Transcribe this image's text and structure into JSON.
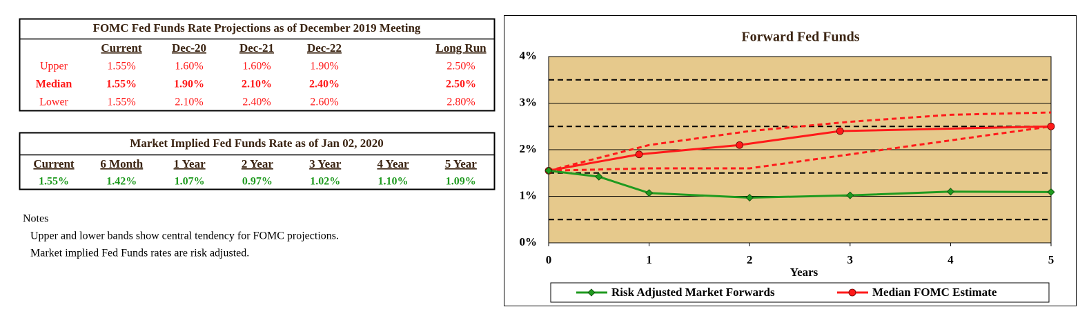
{
  "fomc_table": {
    "title": "FOMC Fed Funds Rate Projections as of December 2019 Meeting",
    "columns": [
      "Current",
      "Dec-20",
      "Dec-21",
      "Dec-22",
      "Long Run"
    ],
    "rows": [
      {
        "label": "Upper",
        "values": [
          "1.55%",
          "1.60%",
          "1.60%",
          "1.90%",
          "2.50%"
        ]
      },
      {
        "label": "Median",
        "values": [
          "1.55%",
          "1.90%",
          "2.10%",
          "2.40%",
          "2.50%"
        ]
      },
      {
        "label": "Lower",
        "values": [
          "1.55%",
          "2.10%",
          "2.40%",
          "2.60%",
          "2.80%"
        ]
      }
    ]
  },
  "market_table": {
    "title": "Market Implied Fed Funds Rate as of Jan 02, 2020",
    "columns": [
      "Current",
      "6 Month",
      "1 Year",
      "2 Year",
      "3 Year",
      "4 Year",
      "5 Year"
    ],
    "values": [
      "1.55%",
      "1.42%",
      "1.07%",
      "0.97%",
      "1.02%",
      "1.10%",
      "1.09%"
    ]
  },
  "notes": {
    "heading": "Notes",
    "lines": [
      "Upper and lower bands show central tendency for FOMC projections.",
      "Market implied Fed Funds rates are risk adjusted."
    ]
  },
  "chart_data": {
    "type": "line",
    "title": "Forward Fed Funds",
    "x_label": "Years",
    "xlim": [
      0,
      5
    ],
    "xticks": [
      0,
      1,
      2,
      3,
      4,
      5
    ],
    "ylim": [
      0,
      4
    ],
    "yticks": [
      {
        "value": 0,
        "label": "0%"
      },
      {
        "value": 1,
        "label": "1%"
      },
      {
        "value": 2,
        "label": "2%"
      },
      {
        "value": 3,
        "label": "3%"
      },
      {
        "value": 4,
        "label": "4%"
      }
    ],
    "minor_yticks": [
      0.5,
      1.5,
      2.5,
      3.5
    ],
    "grid": true,
    "background": "#e6c98c",
    "series": [
      {
        "name": "Risk Adjusted Market Forwards",
        "color": "#1f9a1f",
        "marker": "diamond",
        "x": [
          0,
          0.5,
          1,
          2,
          3,
          4,
          5
        ],
        "values": [
          1.55,
          1.42,
          1.07,
          0.97,
          1.02,
          1.1,
          1.09
        ]
      },
      {
        "name": "Median FOMC Estimate",
        "color": "#ff1a1a",
        "marker": "circle",
        "x": [
          0,
          0.9,
          1.9,
          2.9,
          5
        ],
        "values": [
          1.55,
          1.9,
          2.1,
          2.4,
          2.5
        ]
      },
      {
        "color": "#ff1a1a",
        "dash": true,
        "x": [
          0,
          1,
          2,
          3,
          4,
          5
        ],
        "values": [
          1.55,
          2.1,
          2.4,
          2.6,
          2.75,
          2.8
        ]
      },
      {
        "color": "#ff1a1a",
        "dash": true,
        "x": [
          0,
          1,
          2,
          3,
          4,
          5
        ],
        "values": [
          1.55,
          1.6,
          1.6,
          1.9,
          2.2,
          2.5
        ]
      }
    ]
  }
}
